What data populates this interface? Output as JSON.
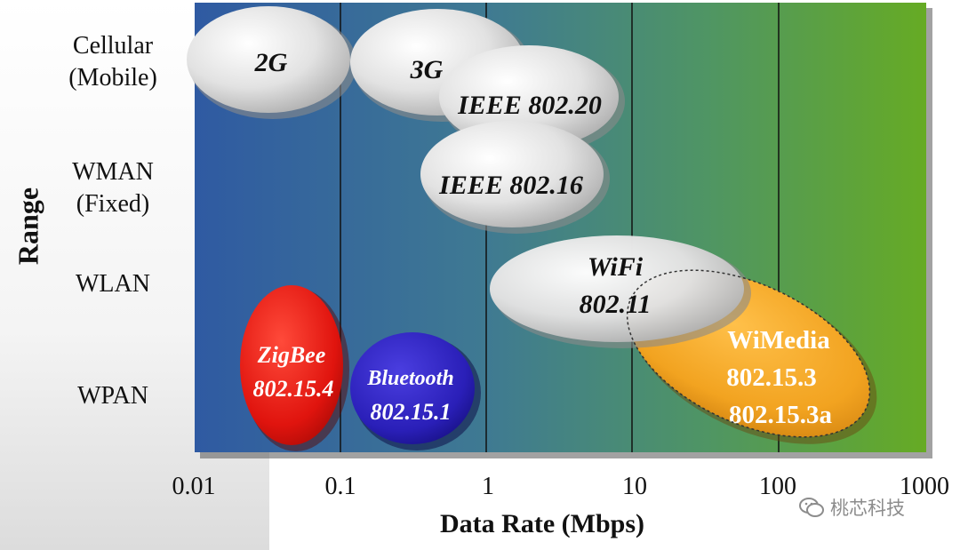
{
  "diagram": {
    "y_axis_title": "Range",
    "x_axis_title": "Data Rate (Mbps)",
    "x_ticks": [
      "0.01",
      "0.1",
      "1",
      "10",
      "100",
      "1000"
    ],
    "y_categories": [
      {
        "line1": "Cellular",
        "line2": "(Mobile)"
      },
      {
        "line1": "WMAN",
        "line2": "(Fixed)"
      },
      {
        "line1": "WLAN",
        "line2": ""
      },
      {
        "line1": "WPAN",
        "line2": ""
      }
    ],
    "technologies": {
      "g2": {
        "label": "2G"
      },
      "g3": {
        "label": "3G"
      },
      "ieee80220": {
        "label": "IEEE 802.20"
      },
      "ieee80216": {
        "label": "IEEE 802.16"
      },
      "wifi": {
        "line1": "WiFi",
        "line2": "802.11"
      },
      "wimedia": {
        "line1": "WiMedia",
        "line2": "802.15.3",
        "line3": "802.15.3a"
      },
      "zigbee": {
        "line1": "ZigBee",
        "line2": "802.15.4"
      },
      "bluetooth": {
        "line1": "Bluetooth",
        "line2": "802.15.1"
      }
    },
    "colors": {
      "bg_left": "#2f5fa0",
      "bg_right": "#62a72c",
      "gray_ellipse": "#d9d9d9",
      "zigbee": "#e01a12",
      "bluetooth": "#2a1fb8",
      "wimedia": "#f2a320"
    }
  },
  "watermark": {
    "text": "桃芯科技",
    "icon": "wechat-icon"
  }
}
